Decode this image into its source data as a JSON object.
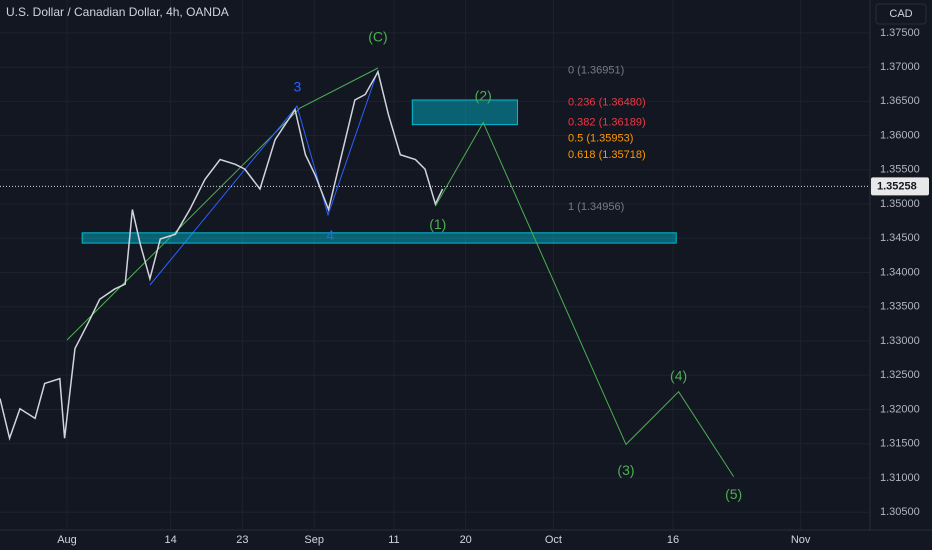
{
  "chart_data": {
    "type": "line",
    "title": "U.S. Dollar / Canadian Dollar, 4h, OANDA",
    "currency": "CAD",
    "last_price": {
      "value": 1.35258,
      "label": "1.35258"
    },
    "xlim": [
      -8.4,
      100.7
    ],
    "ylim": [
      1.3024,
      1.3798
    ],
    "xticks": [
      {
        "value": 0,
        "label": "Aug"
      },
      {
        "value": 13,
        "label": "14"
      },
      {
        "value": 22,
        "label": "23"
      },
      {
        "value": 31,
        "label": "Sep"
      },
      {
        "value": 41,
        "label": "11"
      },
      {
        "value": 50,
        "label": "20"
      },
      {
        "value": 61,
        "label": "Oct"
      },
      {
        "value": 76,
        "label": "16"
      },
      {
        "value": 92,
        "label": "Nov"
      }
    ],
    "yticks": [
      {
        "value": 1.305,
        "label": "1.30500"
      },
      {
        "value": 1.31,
        "label": "1.31000"
      },
      {
        "value": 1.315,
        "label": "1.31500"
      },
      {
        "value": 1.32,
        "label": "1.32000"
      },
      {
        "value": 1.325,
        "label": "1.32500"
      },
      {
        "value": 1.33,
        "label": "1.33000"
      },
      {
        "value": 1.335,
        "label": "1.33500"
      },
      {
        "value": 1.34,
        "label": "1.34000"
      },
      {
        "value": 1.345,
        "label": "1.34500"
      },
      {
        "value": 1.35,
        "label": "1.35000"
      },
      {
        "value": 1.355,
        "label": "1.35500"
      },
      {
        "value": 1.36,
        "label": "1.36000"
      },
      {
        "value": 1.365,
        "label": "1.36500"
      },
      {
        "value": 1.37,
        "label": "1.37000"
      },
      {
        "value": 1.375,
        "label": "1.37500"
      }
    ],
    "series": [
      {
        "color": "#d1d4dc",
        "x": [
          -8.4,
          -7.2,
          -5.9,
          -4.0,
          -2.8,
          -0.9,
          -0.3,
          1.0,
          2.9,
          4.1,
          6.0,
          7.3,
          8.2,
          9.2,
          10.4,
          11.7,
          13.6,
          15.4,
          17.3,
          19.2,
          21.1,
          22.3,
          24.2,
          26.1,
          28.6,
          29.9,
          31.1,
          32.8,
          34.3,
          36.1,
          37.4,
          39.0,
          40.3,
          41.8,
          43.7,
          44.9,
          46.2,
          47.1
        ],
        "values": [
          1.3216,
          1.3158,
          1.3201,
          1.3187,
          1.3238,
          1.3245,
          1.3158,
          1.3289,
          1.3332,
          1.3361,
          1.3376,
          1.3383,
          1.3492,
          1.3441,
          1.3391,
          1.3449,
          1.3456,
          1.3492,
          1.3536,
          1.3565,
          1.3558,
          1.3551,
          1.3522,
          1.3594,
          1.3638,
          1.3572,
          1.3543,
          1.3492,
          1.3565,
          1.3652,
          1.366,
          1.3693,
          1.3631,
          1.3572,
          1.3565,
          1.3551,
          1.35,
          1.3522
        ]
      },
      {
        "color": "#4caf50",
        "x": [
          46.2,
          52.2,
          70.1,
          76.7,
          83.6
        ],
        "values": [
          1.3497,
          1.3619,
          1.3149,
          1.3226,
          1.3102
        ]
      }
    ],
    "wave_labels": [
      {
        "text": "(C)",
        "x": 39.0,
        "y": 1.3743,
        "color": "#4caf50"
      },
      {
        "text": "3",
        "x": 28.9,
        "y": 1.367,
        "color": "#2962ff"
      },
      {
        "text": "4",
        "x": 33.0,
        "y": 1.3453,
        "color": "#2962ff"
      },
      {
        "text": "(1)",
        "x": 46.5,
        "y": 1.3469,
        "color": "#4caf50"
      },
      {
        "text": "(2)",
        "x": 52.2,
        "y": 1.3657,
        "color": "#4caf50"
      },
      {
        "text": "(3)",
        "x": 70.1,
        "y": 1.311,
        "color": "#4caf50"
      },
      {
        "text": "(4)",
        "x": 76.7,
        "y": 1.3248,
        "color": "#4caf50"
      },
      {
        "text": "(5)",
        "x": 83.6,
        "y": 1.3075,
        "color": "#4caf50"
      }
    ],
    "fib_levels": [
      {
        "text": "0 (1.36951)",
        "value": 1.36951,
        "color": "#787b86"
      },
      {
        "text": "0.236 (1.36480)",
        "value": 1.3648,
        "color": "#f23645"
      },
      {
        "text": "0.382 (1.36189)",
        "value": 1.36189,
        "color": "#f23645"
      },
      {
        "text": "0.5 (1.35953)",
        "value": 1.35953,
        "color": "#ff9800"
      },
      {
        "text": "0.618 (1.35718)",
        "value": 1.35718,
        "color": "#ff9800"
      },
      {
        "text": "1 (1.34956)",
        "value": 1.34956,
        "color": "#787b86"
      }
    ],
    "zones": [
      {
        "x": [
          43.3,
          56.5
        ],
        "y": [
          1.3616,
          1.3652
        ]
      },
      {
        "x": [
          1.9,
          76.4
        ],
        "y": [
          1.3443,
          1.3458
        ]
      }
    ]
  }
}
